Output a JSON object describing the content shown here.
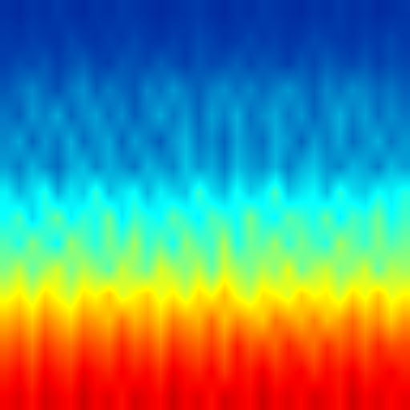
{
  "chart_data": {
    "type": "heatmap",
    "color": "Jet",
    "zlim": [
      0,
      1
    ],
    "tick_labels": false,
    "z": [
      [
        0.1,
        0.09,
        0.11,
        0.1,
        0.12,
        0.1,
        0.09,
        0.11,
        0.1,
        0.12,
        0.11,
        0.1,
        0.09,
        0.1,
        0.11,
        0.12,
        0.1,
        0.09,
        0.11,
        0.1,
        0.12,
        0.11,
        0.1,
        0.09,
        0.11,
        0.1,
        0.12,
        0.1,
        0.11,
        0.09,
        0.1,
        0.11
      ],
      [
        0.12,
        0.11,
        0.13,
        0.12,
        0.11,
        0.14,
        0.12,
        0.11,
        0.13,
        0.12,
        0.14,
        0.12,
        0.11,
        0.13,
        0.12,
        0.14,
        0.13,
        0.11,
        0.12,
        0.14,
        0.12,
        0.13,
        0.11,
        0.12,
        0.14,
        0.13,
        0.12,
        0.11,
        0.13,
        0.12,
        0.14,
        0.12
      ],
      [
        0.13,
        0.15,
        0.14,
        0.16,
        0.13,
        0.15,
        0.17,
        0.14,
        0.13,
        0.16,
        0.15,
        0.14,
        0.17,
        0.15,
        0.13,
        0.16,
        0.14,
        0.15,
        0.17,
        0.14,
        0.16,
        0.15,
        0.13,
        0.16,
        0.14,
        0.17,
        0.15,
        0.14,
        0.16,
        0.13,
        0.15,
        0.14
      ],
      [
        0.16,
        0.19,
        0.22,
        0.18,
        0.15,
        0.2,
        0.23,
        0.17,
        0.21,
        0.18,
        0.16,
        0.22,
        0.19,
        0.24,
        0.2,
        0.17,
        0.21,
        0.23,
        0.19,
        0.22,
        0.18,
        0.21,
        0.24,
        0.2,
        0.17,
        0.22,
        0.19,
        0.23,
        0.21,
        0.18,
        0.2,
        0.17
      ],
      [
        0.2,
        0.17,
        0.24,
        0.21,
        0.26,
        0.18,
        0.22,
        0.25,
        0.19,
        0.23,
        0.17,
        0.21,
        0.26,
        0.2,
        0.24,
        0.18,
        0.25,
        0.21,
        0.27,
        0.19,
        0.23,
        0.26,
        0.2,
        0.24,
        0.18,
        0.22,
        0.27,
        0.21,
        0.25,
        0.19,
        0.23,
        0.2
      ],
      [
        0.22,
        0.26,
        0.18,
        0.24,
        0.2,
        0.27,
        0.19,
        0.23,
        0.26,
        0.18,
        0.25,
        0.21,
        0.17,
        0.24,
        0.28,
        0.2,
        0.23,
        0.18,
        0.26,
        0.22,
        0.19,
        0.27,
        0.24,
        0.18,
        0.25,
        0.21,
        0.26,
        0.19,
        0.23,
        0.27,
        0.2,
        0.24
      ],
      [
        0.25,
        0.21,
        0.28,
        0.23,
        0.19,
        0.26,
        0.29,
        0.22,
        0.27,
        0.24,
        0.2,
        0.28,
        0.25,
        0.22,
        0.3,
        0.24,
        0.27,
        0.21,
        0.29,
        0.25,
        0.23,
        0.28,
        0.21,
        0.27,
        0.3,
        0.24,
        0.22,
        0.28,
        0.26,
        0.21,
        0.29,
        0.25
      ],
      [
        0.36,
        0.28,
        0.33,
        0.4,
        0.27,
        0.35,
        0.31,
        0.42,
        0.29,
        0.34,
        0.38,
        0.28,
        0.36,
        0.32,
        0.3,
        0.43,
        0.33,
        0.29,
        0.39,
        0.31,
        0.35,
        0.44,
        0.3,
        0.34,
        0.37,
        0.29,
        0.41,
        0.33,
        0.31,
        0.38,
        0.35,
        0.4
      ],
      [
        0.38,
        0.44,
        0.33,
        0.41,
        0.47,
        0.36,
        0.42,
        0.39,
        0.48,
        0.35,
        0.43,
        0.4,
        0.37,
        0.46,
        0.41,
        0.36,
        0.45,
        0.42,
        0.38,
        0.49,
        0.4,
        0.37,
        0.46,
        0.43,
        0.39,
        0.47,
        0.36,
        0.44,
        0.41,
        0.48,
        0.38,
        0.43
      ],
      [
        0.45,
        0.4,
        0.5,
        0.43,
        0.38,
        0.52,
        0.46,
        0.41,
        0.49,
        0.44,
        0.53,
        0.42,
        0.47,
        0.39,
        0.51,
        0.45,
        0.43,
        0.54,
        0.4,
        0.48,
        0.46,
        0.52,
        0.42,
        0.49,
        0.44,
        0.41,
        0.53,
        0.47,
        0.43,
        0.5,
        0.45,
        0.48
      ],
      [
        0.5,
        0.56,
        0.47,
        0.53,
        0.58,
        0.49,
        0.55,
        0.51,
        0.46,
        0.57,
        0.52,
        0.48,
        0.59,
        0.54,
        0.5,
        0.56,
        0.47,
        0.58,
        0.53,
        0.49,
        0.55,
        0.51,
        0.6,
        0.48,
        0.54,
        0.57,
        0.5,
        0.52,
        0.58,
        0.47,
        0.55,
        0.53
      ],
      [
        0.6,
        0.64,
        0.58,
        0.66,
        0.61,
        0.57,
        0.65,
        0.62,
        0.68,
        0.59,
        0.63,
        0.67,
        0.6,
        0.64,
        0.58,
        0.66,
        0.62,
        0.69,
        0.61,
        0.57,
        0.65,
        0.63,
        0.59,
        0.67,
        0.62,
        0.64,
        0.58,
        0.66,
        0.61,
        0.68,
        0.6,
        0.63
      ],
      [
        0.7,
        0.73,
        0.68,
        0.75,
        0.71,
        0.67,
        0.74,
        0.72,
        0.69,
        0.76,
        0.7,
        0.73,
        0.68,
        0.75,
        0.72,
        0.7,
        0.77,
        0.69,
        0.74,
        0.71,
        0.68,
        0.76,
        0.73,
        0.7,
        0.75,
        0.69,
        0.72,
        0.77,
        0.71,
        0.74,
        0.68,
        0.73
      ],
      [
        0.78,
        0.81,
        0.76,
        0.83,
        0.79,
        0.77,
        0.82,
        0.8,
        0.78,
        0.84,
        0.79,
        0.81,
        0.76,
        0.83,
        0.8,
        0.78,
        0.82,
        0.77,
        0.85,
        0.79,
        0.81,
        0.78,
        0.84,
        0.8,
        0.77,
        0.83,
        0.79,
        0.82,
        0.78,
        0.84,
        0.8,
        0.81
      ],
      [
        0.84,
        0.87,
        0.82,
        0.88,
        0.85,
        0.83,
        0.89,
        0.86,
        0.84,
        0.88,
        0.85,
        0.87,
        0.83,
        0.89,
        0.86,
        0.84,
        0.88,
        0.82,
        0.87,
        0.85,
        0.89,
        0.84,
        0.86,
        0.88,
        0.83,
        0.87,
        0.85,
        0.89,
        0.84,
        0.86,
        0.88,
        0.85
      ],
      [
        0.88,
        0.9,
        0.86,
        0.91,
        0.89,
        0.87,
        0.92,
        0.88,
        0.9,
        0.86,
        0.91,
        0.89,
        0.87,
        0.92,
        0.88,
        0.9,
        0.86,
        0.91,
        0.89,
        0.87,
        0.92,
        0.88,
        0.9,
        0.87,
        0.91,
        0.89,
        0.86,
        0.92,
        0.88,
        0.9,
        0.87,
        0.89
      ]
    ]
  }
}
